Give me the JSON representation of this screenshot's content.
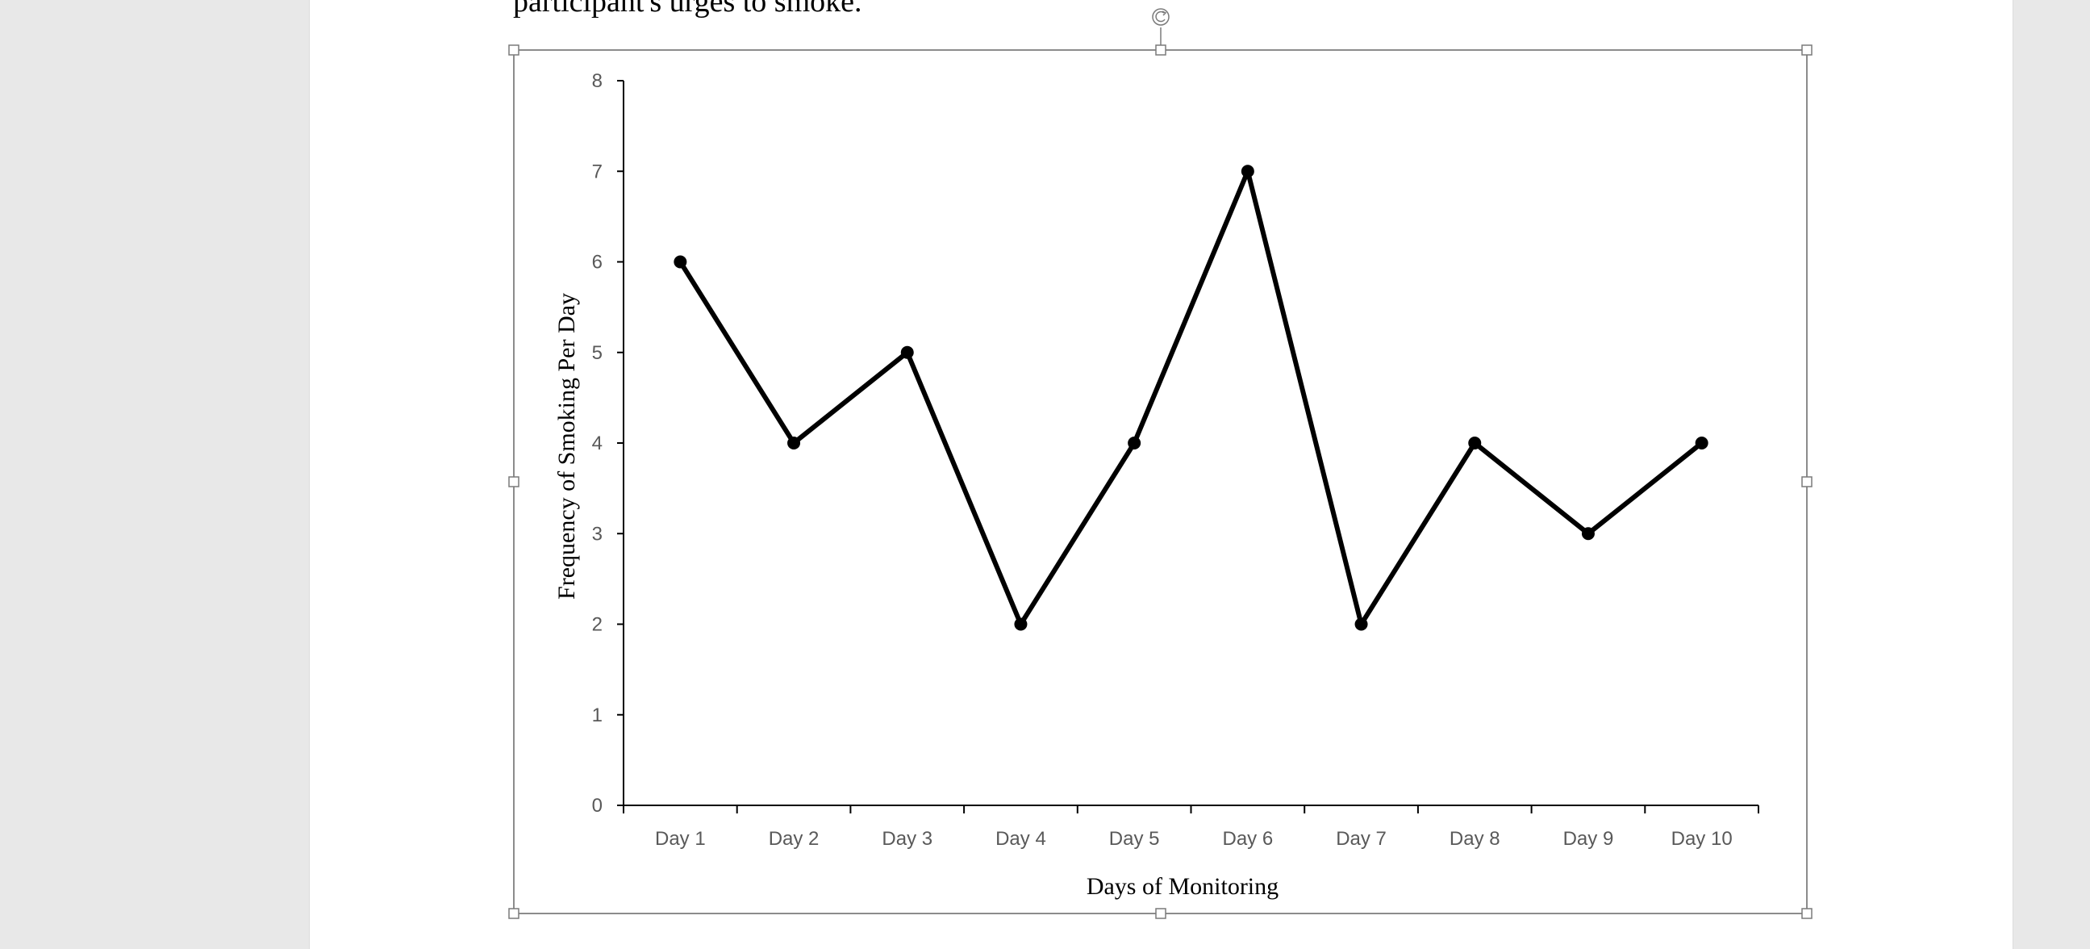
{
  "document": {
    "text_line": "participant's urges to smoke."
  },
  "chart_data": {
    "type": "line",
    "categories": [
      "Day 1",
      "Day 2",
      "Day 3",
      "Day 4",
      "Day 5",
      "Day 6",
      "Day 7",
      "Day 8",
      "Day 9",
      "Day 10"
    ],
    "series": [
      {
        "values": [
          6,
          4,
          5,
          2,
          4,
          7,
          2,
          4,
          3,
          4
        ]
      }
    ],
    "xlabel": "Days of Monitoring",
    "ylabel": "Frequency of Smoking  Per Day",
    "ylim": [
      0,
      8
    ],
    "yticks": [
      "0",
      "1",
      "2",
      "3",
      "4",
      "5",
      "6",
      "7",
      "8"
    ],
    "grid": false,
    "line_color": "#000000",
    "selected": true
  }
}
